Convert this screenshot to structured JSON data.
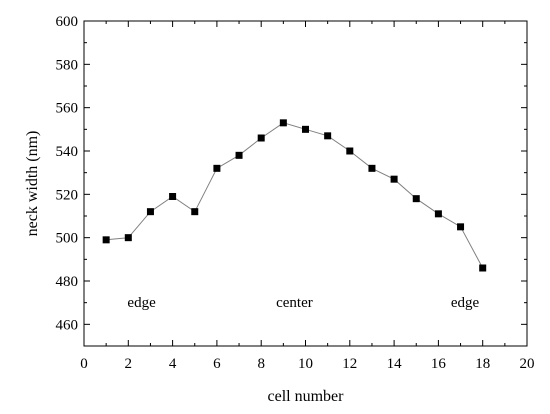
{
  "chart_data": {
    "type": "line",
    "xlabel": "cell number",
    "ylabel": "neck width (nm)",
    "xlim": [
      0,
      20
    ],
    "ylim": [
      450,
      600
    ],
    "x_ticks": [
      0,
      2,
      4,
      6,
      8,
      10,
      12,
      14,
      16,
      18,
      20
    ],
    "y_ticks": [
      460,
      480,
      500,
      520,
      540,
      560,
      580,
      600
    ],
    "grid": false,
    "legend": "none",
    "marker": "square",
    "line_color": "#808080",
    "marker_color": "#000000",
    "series": [
      {
        "x": [
          1,
          2,
          3,
          4,
          5,
          6,
          7,
          8,
          9,
          10,
          11,
          12,
          13,
          14,
          15,
          16,
          17,
          18
        ],
        "y": [
          499,
          500,
          512,
          519,
          512,
          532,
          538,
          546,
          553,
          550,
          547,
          540,
          532,
          527,
          518,
          511,
          505,
          486
        ]
      }
    ],
    "annotations": [
      {
        "text": "edge",
        "x": 2.6,
        "y": 468
      },
      {
        "text": "center",
        "x": 9.5,
        "y": 468
      },
      {
        "text": "edge",
        "x": 17.2,
        "y": 468
      }
    ]
  }
}
